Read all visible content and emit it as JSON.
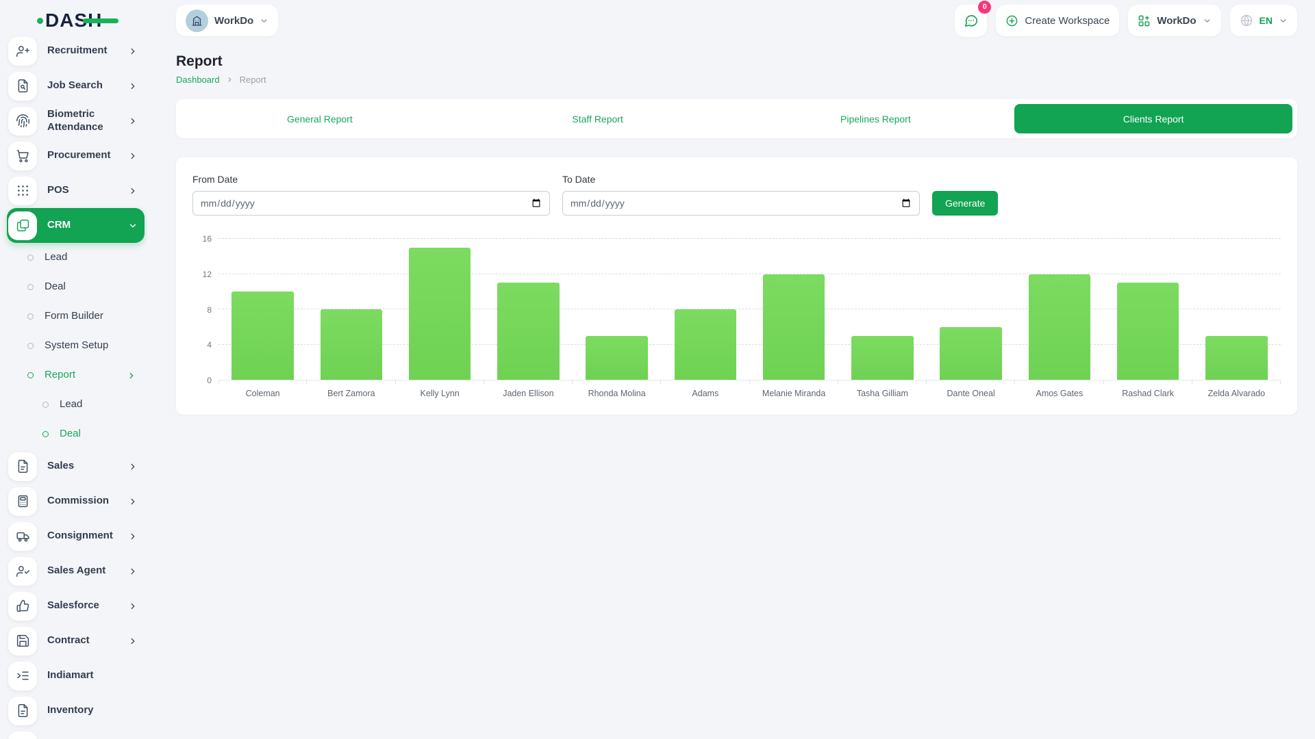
{
  "brand": {
    "name": "DASH"
  },
  "topbar": {
    "workspace_label": "WorkDo",
    "messages_badge": "0",
    "create_workspace_label": "Create Workspace",
    "app_switcher_label": "WorkDo",
    "language": "EN"
  },
  "sidebar": {
    "items": [
      {
        "label": "Recruitment",
        "icon": "user-plus",
        "chevron": "right"
      },
      {
        "label": "Job Search",
        "icon": "file-search",
        "chevron": "right"
      },
      {
        "label": "Biometric Attendance",
        "icon": "fingerprint",
        "chevron": "right"
      },
      {
        "label": "Procurement",
        "icon": "cart",
        "chevron": "right"
      },
      {
        "label": "POS",
        "icon": "grid-dots",
        "chevron": "right"
      },
      {
        "label": "CRM",
        "icon": "crm",
        "chevron": "down",
        "active": true
      },
      {
        "label": "Lead",
        "level": 1
      },
      {
        "label": "Deal",
        "level": 1
      },
      {
        "label": "Form Builder",
        "level": 1
      },
      {
        "label": "System Setup",
        "level": 1
      },
      {
        "label": "Report",
        "level": 1,
        "active": true,
        "chevron": "right"
      },
      {
        "label": "Lead",
        "level": 2
      },
      {
        "label": "Deal",
        "level": 2,
        "active": true
      },
      {
        "label": "Sales",
        "icon": "file",
        "chevron": "right"
      },
      {
        "label": "Commission",
        "icon": "calculator",
        "chevron": "right"
      },
      {
        "label": "Consignment",
        "icon": "truck",
        "chevron": "right"
      },
      {
        "label": "Sales Agent",
        "icon": "user-check",
        "chevron": "right"
      },
      {
        "label": "Salesforce",
        "icon": "thumbs-up",
        "chevron": "right"
      },
      {
        "label": "Contract",
        "icon": "save",
        "chevron": "right"
      },
      {
        "label": "Indiamart",
        "icon": "list-arrow"
      },
      {
        "label": "Inventory",
        "icon": "file"
      },
      {
        "label": "",
        "icon": "file"
      }
    ]
  },
  "page": {
    "title": "Report",
    "breadcrumb_home": "Dashboard",
    "breadcrumb_current": "Report"
  },
  "tabs": [
    {
      "label": "General Report"
    },
    {
      "label": "Staff Report"
    },
    {
      "label": "Pipelines Report"
    },
    {
      "label": "Clients Report",
      "active": true
    }
  ],
  "filters": {
    "from_label": "From Date",
    "to_label": "To Date",
    "date_placeholder": "mm/dd/yyyy",
    "generate_label": "Generate"
  },
  "chart_data": {
    "type": "bar",
    "categories": [
      "Coleman",
      "Bert Zamora",
      "Kelly Lynn",
      "Jaden Ellison",
      "Rhonda Molina",
      "Adams",
      "Melanie Miranda",
      "Tasha Gilliam",
      "Dante Oneal",
      "Amos Gates",
      "Rashad Clark",
      "Zelda Alvarado"
    ],
    "values": [
      10,
      8,
      15,
      11,
      5,
      8,
      12,
      5,
      6,
      12,
      11,
      5
    ],
    "title": "",
    "xlabel": "",
    "ylabel": "",
    "ylim": [
      0,
      16
    ],
    "yticks": [
      0,
      4,
      8,
      12,
      16
    ],
    "grid": true,
    "legend": false,
    "bar_color": "#6fd253"
  },
  "colors": {
    "primary": "#12a353",
    "link": "#18a75c",
    "badge": "#fd3577",
    "bar": "#6fd253"
  }
}
